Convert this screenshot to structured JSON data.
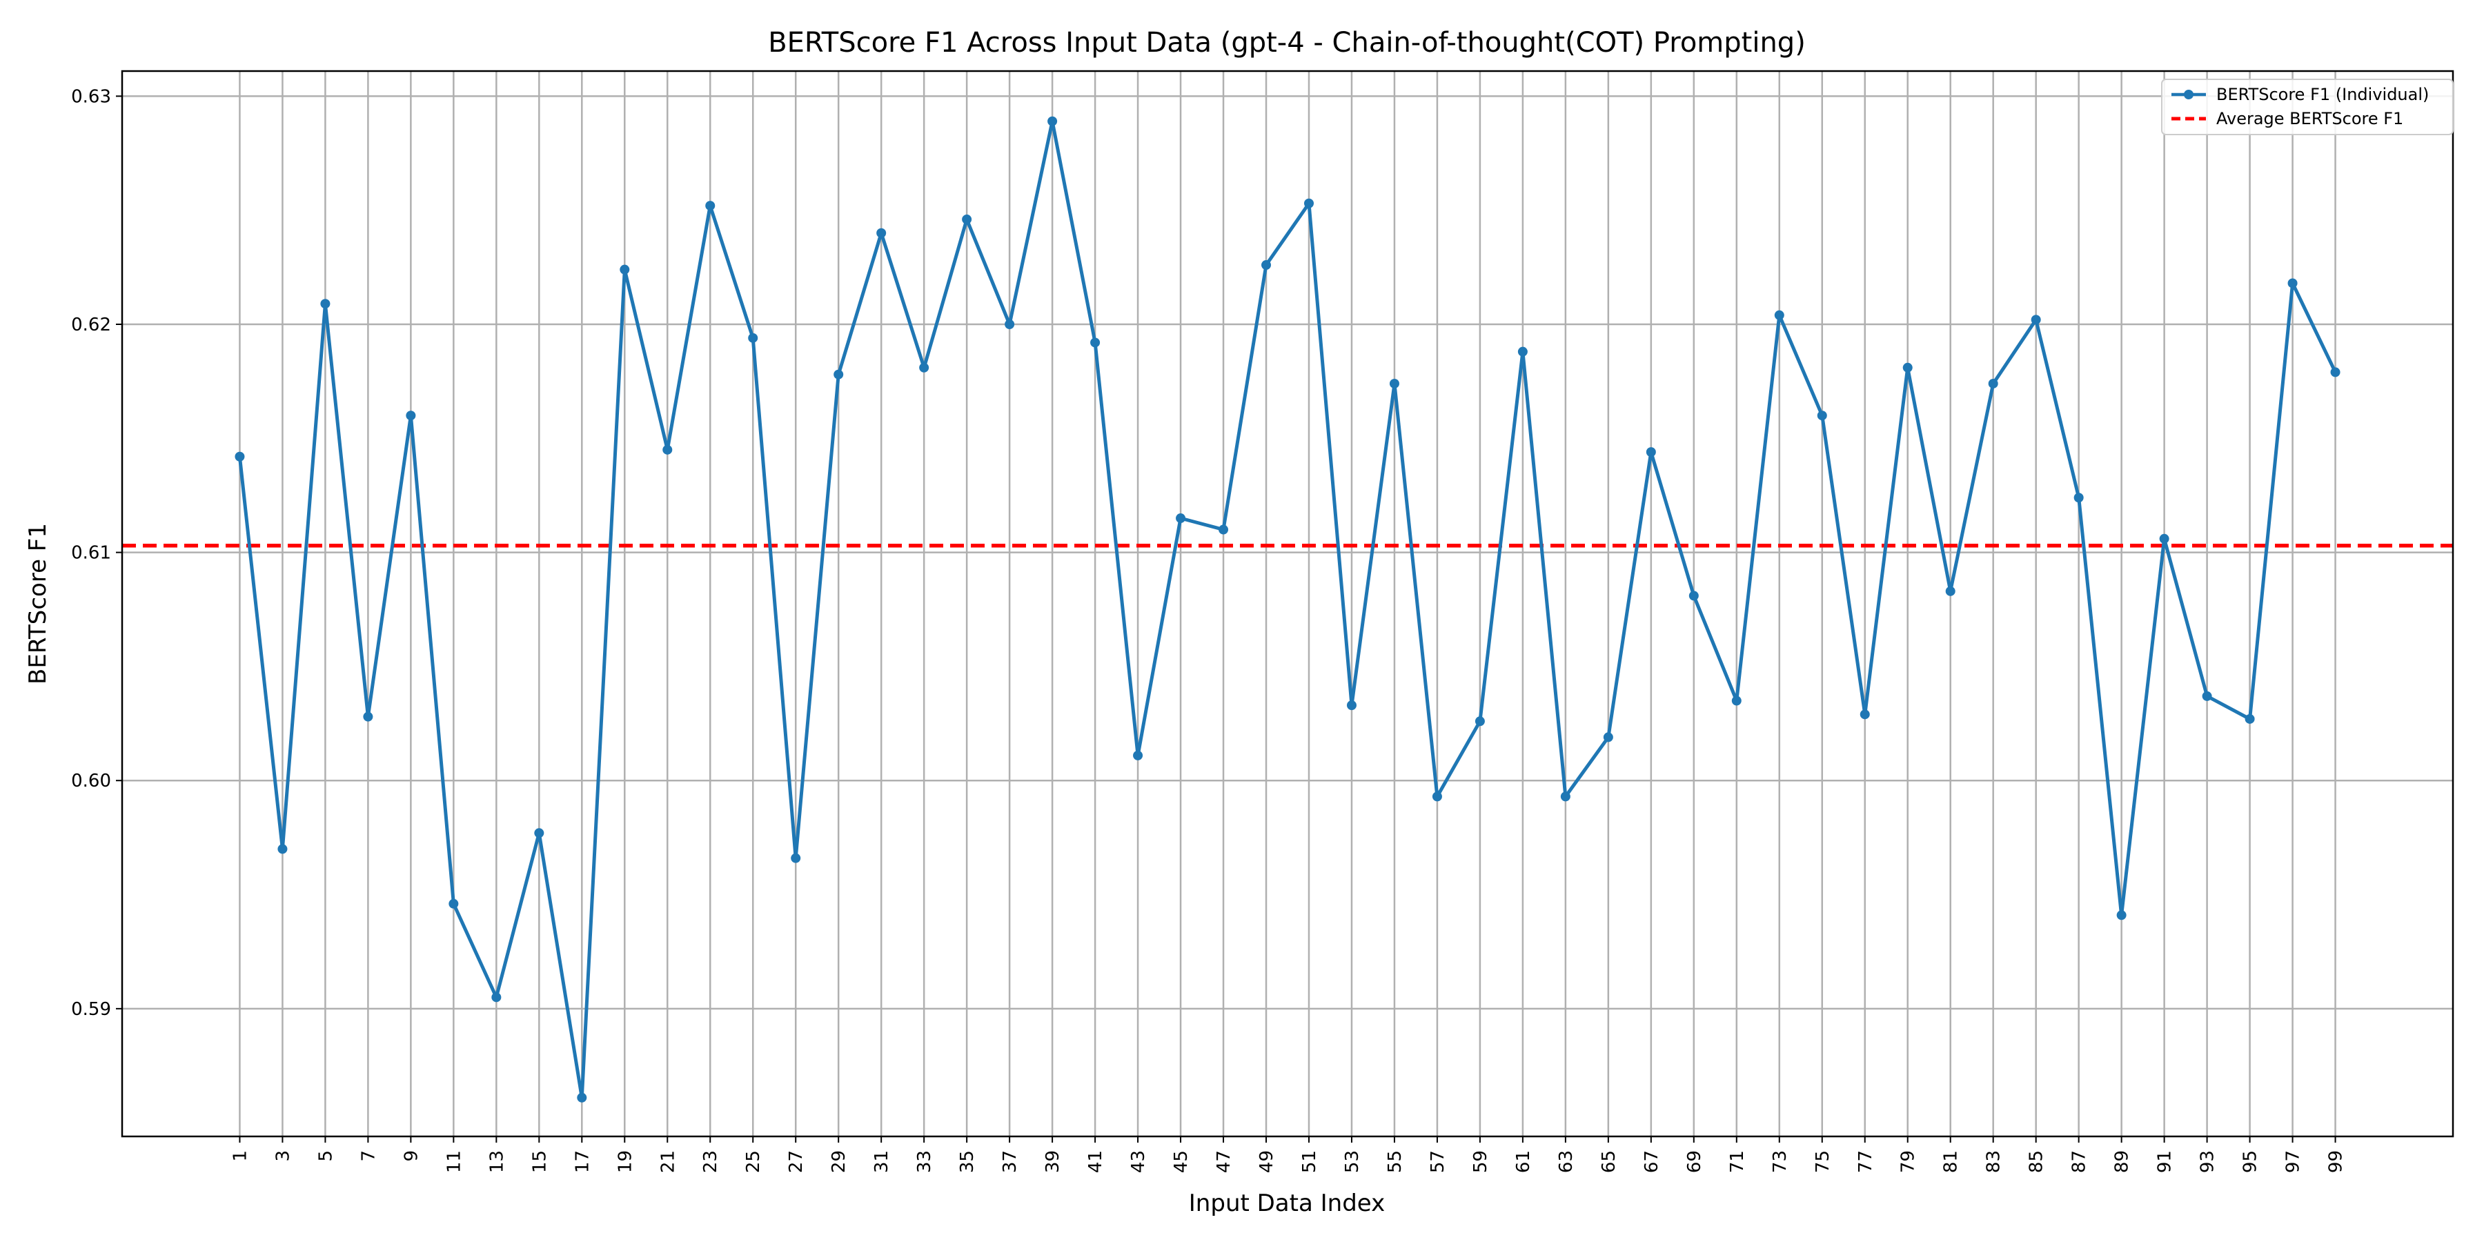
{
  "chart_data": {
    "type": "line",
    "title": "BERTScore F1 Across Input Data (gpt-4 - Chain-of-thought(COT) Prompting)",
    "xlabel": "Input Data Index",
    "ylabel": "BERTScore F1",
    "x": [
      1,
      3,
      5,
      7,
      9,
      11,
      13,
      15,
      17,
      19,
      21,
      23,
      25,
      27,
      29,
      31,
      33,
      35,
      37,
      39,
      41,
      43,
      45,
      47,
      49,
      51,
      53,
      55,
      57,
      59,
      61,
      63,
      65,
      67,
      69,
      71,
      73,
      75,
      77,
      79,
      81,
      83,
      85,
      87,
      89,
      91,
      93,
      95,
      97,
      99
    ],
    "xlim": [
      -4.5,
      104.5
    ],
    "ylim": [
      0.5844,
      0.6311
    ],
    "yticks": [
      0.59,
      0.6,
      0.61,
      0.62,
      0.63
    ],
    "ytick_labels": [
      "0.59",
      "0.60",
      "0.61",
      "0.62",
      "0.63"
    ],
    "xtick_labels": [
      "1",
      "3",
      "5",
      "7",
      "9",
      "11",
      "13",
      "15",
      "17",
      "19",
      "21",
      "23",
      "25",
      "27",
      "29",
      "31",
      "33",
      "35",
      "37",
      "39",
      "41",
      "43",
      "45",
      "47",
      "49",
      "51",
      "53",
      "55",
      "57",
      "59",
      "61",
      "63",
      "65",
      "67",
      "69",
      "71",
      "73",
      "75",
      "77",
      "79",
      "81",
      "83",
      "85",
      "87",
      "89",
      "91",
      "93",
      "95",
      "97",
      "99"
    ],
    "grid": true,
    "legend_position": "top-right",
    "series": [
      {
        "name": "BERTScore F1 (Individual)",
        "color": "#1f77b4",
        "style": "solid-with-markers",
        "values": [
          0.6142,
          0.597,
          0.6209,
          0.6028,
          0.616,
          0.5946,
          0.5905,
          0.5977,
          0.5861,
          0.6224,
          0.6145,
          0.6252,
          0.6194,
          0.5966,
          0.6178,
          0.624,
          0.6181,
          0.6246,
          0.62,
          0.6289,
          0.6192,
          0.6011,
          0.6115,
          0.611,
          0.6226,
          0.6253,
          0.6033,
          0.6174,
          0.5993,
          0.6026,
          0.6188,
          0.5993,
          0.6019,
          0.6144,
          0.6081,
          0.6035,
          0.6204,
          0.616,
          0.6029,
          0.6181,
          0.6083,
          0.6174,
          0.6202,
          0.6124,
          0.5941,
          0.6106,
          0.6037,
          0.6027,
          0.6218,
          0.6179
        ]
      },
      {
        "name": "Average BERTScore F1",
        "color": "#ff0000",
        "style": "dashed",
        "value": 0.6103
      }
    ]
  }
}
